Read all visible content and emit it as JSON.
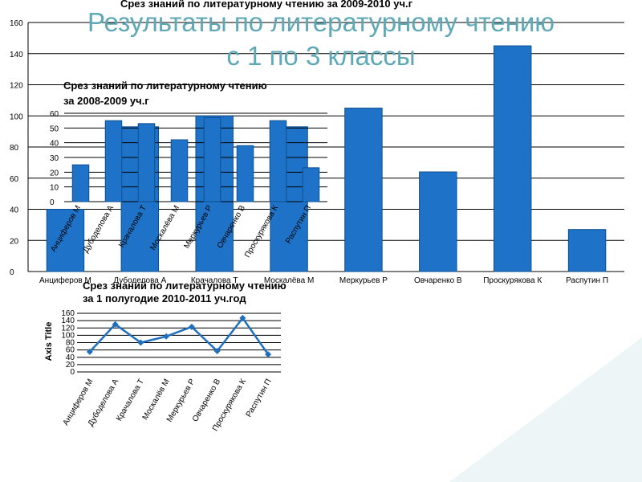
{
  "slide": {
    "title_line1": "Результаты по литературному чтению",
    "title_line2": "с 1 по 3 классы"
  },
  "colors": {
    "bar": "#1e73c8",
    "bar_edge": "#0d4f8f",
    "line": "#1f6fbf",
    "title": "#5fa8b6",
    "grid": "#000000"
  },
  "chart_data": [
    {
      "id": "main",
      "type": "bar",
      "title": "Срез знаний по литературному чтению за 2009-2010 уч.г",
      "xlabel": "",
      "ylabel": "",
      "categories": [
        "Анциферов М",
        "Дубоделова А",
        "Крачалова Т",
        "Москалёва М",
        "Меркурьев Р",
        "Овчаренко В",
        "Проскурякова К",
        "Распутин  П"
      ],
      "values": [
        40,
        93,
        100,
        93,
        105,
        64,
        145,
        27
      ],
      "ylim": [
        0,
        160
      ],
      "yticks": [
        "0",
        "20",
        "40",
        "60",
        "80",
        "100",
        "120",
        "140",
        "160"
      ],
      "grid": true
    },
    {
      "id": "inset_2008",
      "type": "bar",
      "title_line1": "Срез знаний по литературному чтению",
      "title_line2": "за 2008-2009 уч.г",
      "categories": [
        "Анциферов М",
        "Дубоделова А",
        "Крачалова Т",
        "Москалёва М",
        "Меркурьев Р",
        "Овчаренко В",
        "Проскурякова К",
        "Распутин П"
      ],
      "values": [
        25,
        55,
        53,
        42,
        57,
        38,
        55,
        23
      ],
      "ylim": [
        0,
        60
      ],
      "yticks": [
        "0",
        "10",
        "20",
        "30",
        "40",
        "50",
        "60"
      ],
      "grid": true
    },
    {
      "id": "line_2010",
      "type": "line",
      "title_line1": "Срез знаний по литературному чтению",
      "title_line2": "за 1 полугодие 2010-2011 уч.год",
      "ylabel": "Axis Title",
      "categories": [
        "Анциферов М",
        "Дубоделова А",
        "Крачалова Т",
        "Москалёв М",
        "Меркурьев Р",
        "Овчаренко В",
        "Проскурякова К",
        "Распутин П"
      ],
      "values": [
        55,
        130,
        80,
        97,
        123,
        57,
        147,
        48
      ],
      "ylim": [
        0,
        160
      ],
      "yticks": [
        "0",
        "20",
        "40",
        "60",
        "80",
        "100",
        "120",
        "140",
        "160"
      ],
      "grid": true
    }
  ]
}
